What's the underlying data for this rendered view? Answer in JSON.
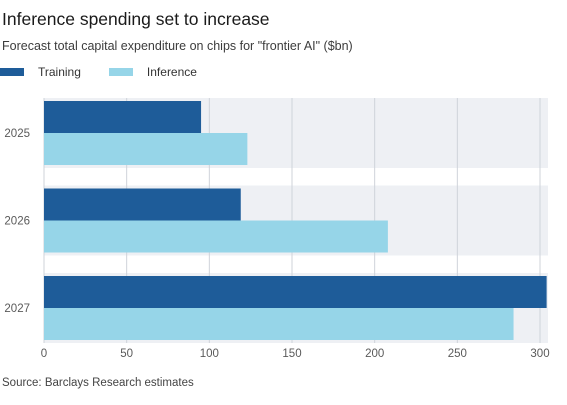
{
  "header": {
    "title": "Inference spending set to increase",
    "subtitle": "Forecast total capital expenditure on chips for \"frontier AI\" ($bn)"
  },
  "footer": {
    "source": "Source: Barclays Research estimates"
  },
  "colors": {
    "training": "#1e5c99",
    "inference": "#96d5e8",
    "band": "#eef0f4",
    "gridline": "#cfd3da"
  },
  "chart_data": {
    "type": "bar",
    "orientation": "horizontal",
    "title": "Inference spending set to increase",
    "subtitle": "Forecast total capital expenditure on chips for \"frontier AI\" ($bn)",
    "categories": [
      "2025",
      "2026",
      "2027"
    ],
    "series": [
      {
        "name": "Training",
        "values": [
          95,
          119,
          304
        ]
      },
      {
        "name": "Inference",
        "values": [
          123,
          208,
          284
        ]
      }
    ],
    "xlim": [
      0,
      300
    ],
    "xticks": [
      0,
      50,
      100,
      150,
      200,
      250,
      300
    ],
    "grid": true,
    "legend_position": "top-left"
  }
}
